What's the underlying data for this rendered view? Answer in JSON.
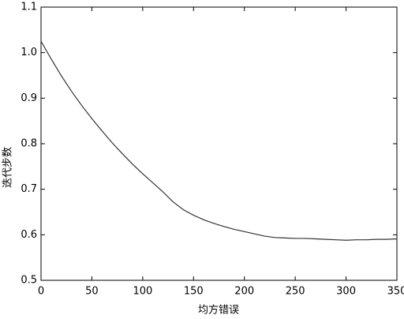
{
  "chart_data": {
    "type": "line",
    "xlabel": "均方错误",
    "ylabel": "迭代步数",
    "x": [
      0,
      10,
      20,
      30,
      40,
      50,
      60,
      70,
      80,
      90,
      100,
      110,
      120,
      130,
      140,
      150,
      160,
      170,
      180,
      190,
      200,
      210,
      220,
      230,
      240,
      250,
      260,
      270,
      280,
      290,
      300,
      310,
      320,
      330,
      340,
      350
    ],
    "series": [
      {
        "color": "#333333",
        "values": [
          1.025,
          0.986,
          0.949,
          0.915,
          0.884,
          0.855,
          0.828,
          0.802,
          0.778,
          0.755,
          0.734,
          0.714,
          0.694,
          0.672,
          0.655,
          0.643,
          0.633,
          0.625,
          0.618,
          0.612,
          0.607,
          0.602,
          0.597,
          0.594,
          0.593,
          0.592,
          0.592,
          0.591,
          0.59,
          0.589,
          0.588,
          0.589,
          0.589,
          0.59,
          0.59,
          0.591
        ]
      }
    ],
    "xlim": [
      0,
      350
    ],
    "xticks": [
      0,
      50,
      100,
      150,
      200,
      250,
      300,
      350
    ],
    "ylim": [
      0.5,
      1.1
    ],
    "yticks": [
      0.5,
      0.6,
      0.7,
      0.8,
      0.9,
      {
        "value": 1,
        "label": "1.0"
      },
      1.1
    ],
    "grid": false
  }
}
